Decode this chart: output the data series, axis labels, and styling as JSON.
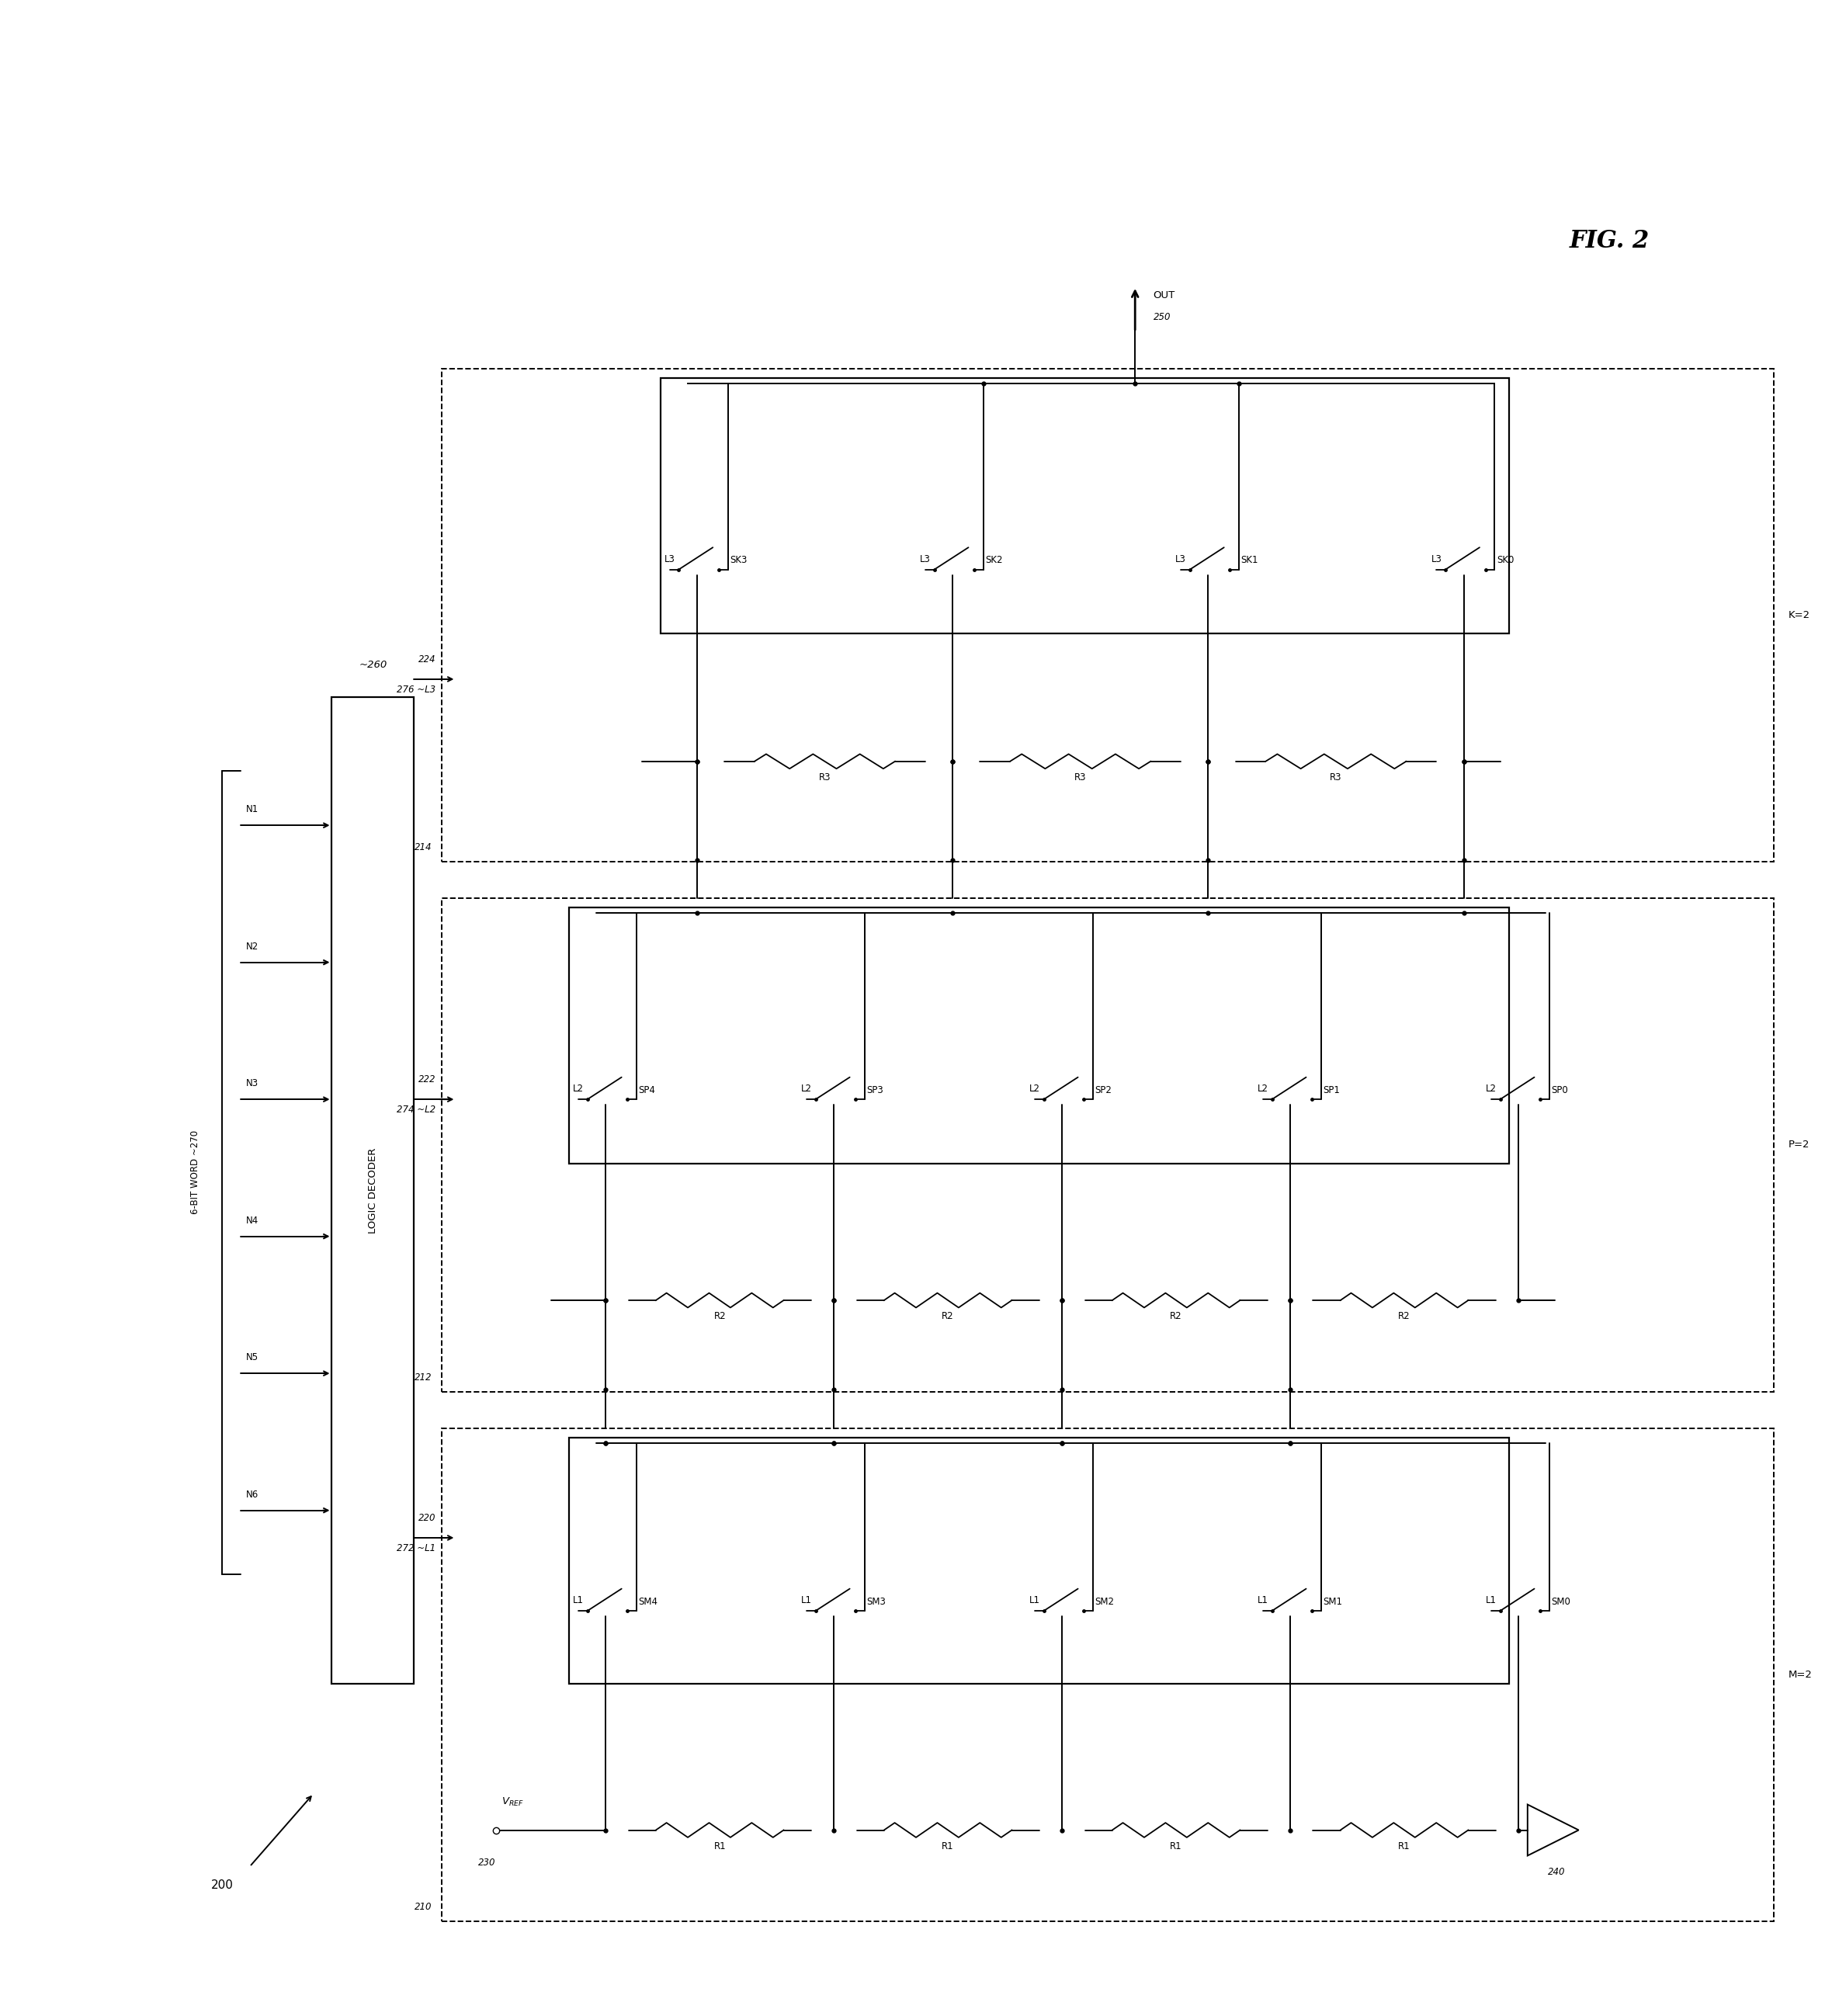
{
  "fig_width": 23.6,
  "fig_height": 25.97,
  "bg_color": "#ffffff",
  "line_color": "#000000",
  "title": "FIG. 2",
  "decoder_label": "LOGIC DECODER",
  "word_label": "6-BIT WORD ~270",
  "inputs": [
    "N1",
    "N2",
    "N3",
    "N4",
    "N5",
    "N6"
  ],
  "stage1": {
    "box_label": "210",
    "bus_label": "272 ~L1",
    "ctrl_label": "220",
    "switches": [
      "SM4",
      "SM3",
      "SM2",
      "SM1",
      "SM0"
    ],
    "sw_label": "L1",
    "resistors": [
      "R1",
      "R1",
      "R1",
      "R1"
    ],
    "param": "M=2",
    "buf_label": "240",
    "vref_label": "V_REF",
    "vref_num": "230"
  },
  "stage2": {
    "box_label": "212",
    "bus_label": "274 ~L2",
    "ctrl_label": "222",
    "switches": [
      "SP4",
      "SP3",
      "SP2",
      "SP1",
      "SP0"
    ],
    "sw_label": "L2",
    "resistors": [
      "R2",
      "R2",
      "R2",
      "R2"
    ],
    "param": "P=2"
  },
  "stage3": {
    "box_label": "214",
    "bus_label": "276 ~L3",
    "ctrl_label": "224",
    "switches": [
      "SK3",
      "SK2",
      "SK1",
      "SK0"
    ],
    "sw_label": "L3",
    "resistors": [
      "R3",
      "R3",
      "R3"
    ],
    "param": "K=2"
  },
  "out_label": "OUT",
  "out_num": "250",
  "decoder_num": "~260",
  "fig_num": "200"
}
